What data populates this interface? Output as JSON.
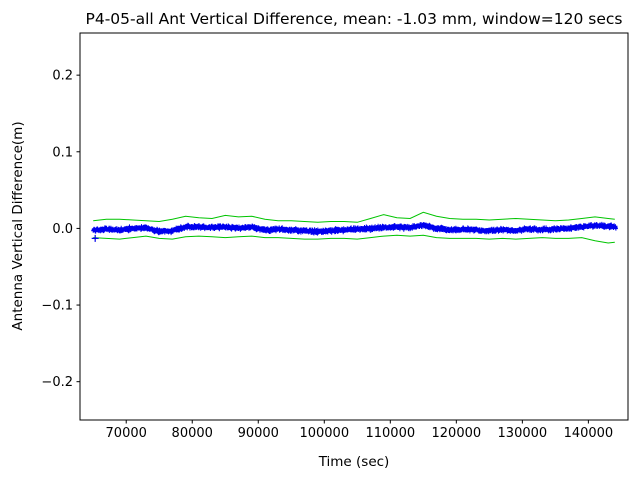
{
  "chart_data": {
    "type": "scatter",
    "title": "P4-05-all Ant Vertical Difference, mean: -1.03 mm, window=120 secs",
    "xlabel": "Time (sec)",
    "ylabel": "Antenna Vertical Difference(m)",
    "mean_mm": -1.03,
    "window_secs": 120,
    "xlim": [
      63000,
      146000
    ],
    "ylim": [
      -0.25,
      0.255
    ],
    "grid": false,
    "legend": "none",
    "xticks": [
      {
        "value": 70000,
        "label": "70000"
      },
      {
        "value": 80000,
        "label": "80000"
      },
      {
        "value": 90000,
        "label": "90000"
      },
      {
        "value": 100000,
        "label": "100000"
      },
      {
        "value": 110000,
        "label": "110000"
      },
      {
        "value": 120000,
        "label": "120000"
      },
      {
        "value": 130000,
        "label": "130000"
      },
      {
        "value": 140000,
        "label": "140000"
      }
    ],
    "yticks": [
      {
        "value": -0.2,
        "label": "−0.2"
      },
      {
        "value": -0.1,
        "label": "−0.1"
      },
      {
        "value": 0.0,
        "label": "0.0"
      },
      {
        "value": 0.1,
        "label": "0.1"
      },
      {
        "value": 0.2,
        "label": "0.2"
      }
    ],
    "colors": {
      "scatter": "#0000ee",
      "envelope": "#00c400",
      "mean_line": "#ff0000",
      "axes": "#000000",
      "background": "#ffffff"
    },
    "series": {
      "x": [
        65000,
        67000,
        69000,
        71000,
        73000,
        75000,
        77000,
        79000,
        81000,
        83000,
        85000,
        87000,
        89000,
        91000,
        93000,
        95000,
        97000,
        99000,
        101000,
        103000,
        105000,
        107000,
        109000,
        111000,
        113000,
        115000,
        117000,
        119000,
        121000,
        123000,
        125000,
        127000,
        129000,
        131000,
        133000,
        135000,
        137000,
        139000,
        141000,
        143000,
        144000
      ],
      "center": [
        -0.002,
        -0.001,
        -0.002,
        0.0,
        0.001,
        -0.004,
        -0.003,
        0.002,
        0.002,
        0.001,
        0.002,
        0.0,
        0.002,
        -0.002,
        -0.001,
        -0.002,
        -0.003,
        -0.004,
        -0.003,
        -0.002,
        -0.001,
        0.0,
        0.001,
        0.002,
        0.001,
        0.004,
        0.0,
        -0.002,
        -0.001,
        -0.002,
        -0.003,
        -0.002,
        -0.003,
        -0.001,
        -0.002,
        -0.001,
        0.0,
        0.002,
        0.004,
        0.003,
        0.002
      ],
      "upper": [
        0.01,
        0.012,
        0.012,
        0.011,
        0.01,
        0.009,
        0.012,
        0.016,
        0.014,
        0.013,
        0.017,
        0.015,
        0.016,
        0.012,
        0.01,
        0.01,
        0.009,
        0.008,
        0.009,
        0.009,
        0.008,
        0.013,
        0.018,
        0.014,
        0.013,
        0.021,
        0.016,
        0.013,
        0.012,
        0.012,
        0.011,
        0.012,
        0.013,
        0.012,
        0.011,
        0.01,
        0.011,
        0.013,
        0.015,
        0.013,
        0.012
      ],
      "lower": [
        -0.012,
        -0.013,
        -0.014,
        -0.012,
        -0.01,
        -0.013,
        -0.014,
        -0.011,
        -0.01,
        -0.011,
        -0.012,
        -0.011,
        -0.01,
        -0.012,
        -0.012,
        -0.013,
        -0.014,
        -0.014,
        -0.013,
        -0.013,
        -0.014,
        -0.012,
        -0.01,
        -0.009,
        -0.01,
        -0.009,
        -0.012,
        -0.013,
        -0.013,
        -0.013,
        -0.014,
        -0.013,
        -0.014,
        -0.013,
        -0.012,
        -0.013,
        -0.013,
        -0.012,
        -0.016,
        -0.019,
        -0.018
      ]
    },
    "scatter": {
      "marker": "+",
      "x_start": 65000,
      "x_end": 144200,
      "step": 35,
      "noise_halfwidth": 0.0035
    },
    "outliers": [
      {
        "x": 65300,
        "y": -0.013
      }
    ]
  }
}
